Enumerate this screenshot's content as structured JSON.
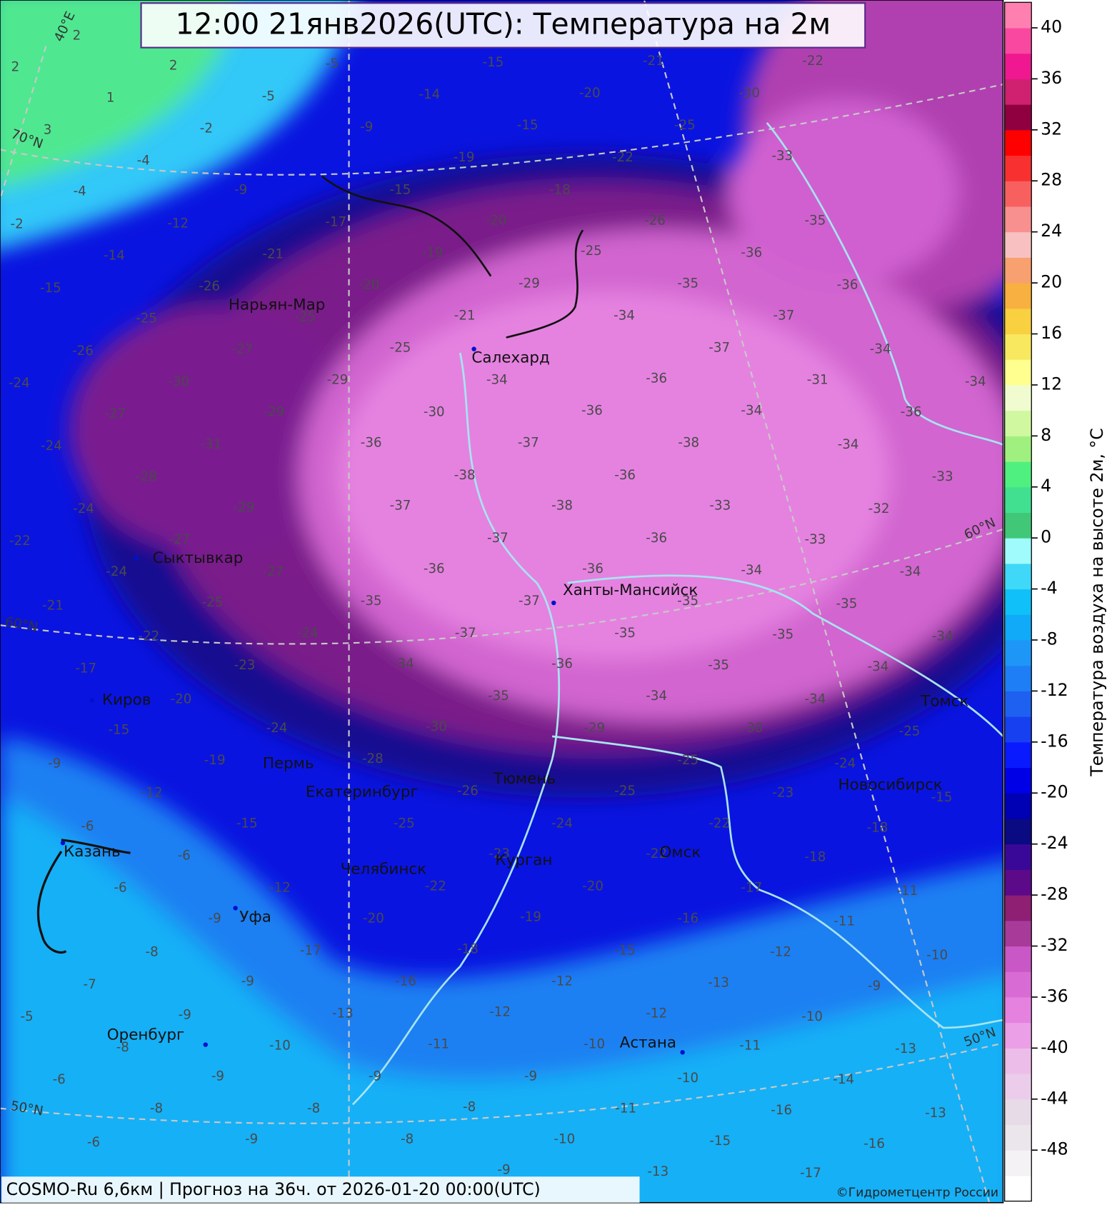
{
  "header": {
    "title": "12:00 21янв2026(UTC): Температура на 2м"
  },
  "map": {
    "cities": [
      "Нарьян-Мар",
      "Салехард",
      "Сыктывкар",
      "Ханты-Мансийск",
      "Киров",
      "Пермь",
      "Екатеринбург",
      "Тюмень",
      "Новосибирск",
      "Томск",
      "Казань",
      "Челябинск",
      "Курган",
      "Омск",
      "Уфа",
      "Оренбург",
      "Астана"
    ],
    "graticule_labels": [
      "70°N",
      "60°N",
      "60°N",
      "50°N",
      "50°N",
      "40°E"
    ],
    "temperature_labels": [
      2,
      2,
      2,
      1,
      3,
      -2,
      -4,
      -4,
      -2,
      -5,
      -5,
      -15,
      -14,
      -9,
      -9,
      -12,
      -14,
      -15,
      -15,
      -17,
      -21,
      -26,
      -25,
      -26,
      -24,
      -15,
      -19,
      -20,
      -21,
      -18,
      -20,
      -19,
      -20,
      -25,
      -27,
      -30,
      -27,
      -24,
      -22,
      -25,
      -30,
      -22,
      -26,
      -25,
      -29,
      -21,
      -25,
      -29,
      -29,
      -31,
      -28,
      -24,
      -22,
      -33,
      -36,
      -35,
      -34,
      -34,
      -30,
      -36,
      -29,
      -27,
      -24,
      -21,
      -35,
      -37,
      -37,
      -36,
      -36,
      -37,
      -38,
      -37,
      -27,
      -25,
      -22,
      -17,
      -36,
      -34,
      -31,
      -34,
      -38,
      -36,
      -38,
      -37,
      -36,
      -35,
      -24,
      -23,
      -20,
      -15,
      -9,
      -34,
      -36,
      -34,
      -33,
      -36,
      -36,
      -37,
      -37,
      -34,
      -24,
      -19,
      -12,
      -6,
      -33,
      -32,
      -33,
      -34,
      -35,
      -35,
      -36,
      -35,
      -30,
      -28,
      -15,
      -6,
      -6,
      -34,
      -35,
      -35,
      -35,
      -34,
      -29,
      -26,
      -25,
      -12,
      -9,
      -8,
      -7,
      -5,
      -34,
      -34,
      -34,
      -30,
      -25,
      -25,
      -24,
      -23,
      -22,
      -20,
      -17,
      -9,
      -9,
      -8,
      -6,
      -25,
      -24,
      -23,
      -22,
      -22,
      -20,
      -19,
      -18,
      -16,
      -13,
      -10,
      -9,
      -8,
      -6,
      -15,
      -18,
      -18,
      -17,
      -16,
      -15,
      -12,
      -12,
      -11,
      -9,
      -8,
      -9,
      -11,
      -11,
      -12,
      -13,
      -12,
      -10,
      -9,
      -8,
      -8,
      -10,
      -9,
      -10,
      -11,
      -10,
      -11,
      -10,
      -13,
      -14,
      -16,
      -15,
      -13,
      -16,
      -17,
      -13,
      -9
    ]
  },
  "colorbar": {
    "label": "Температура воздуха на высоте 2м, °C",
    "ylim": [
      -52,
      42
    ],
    "yticks": [
      40,
      36,
      32,
      28,
      24,
      20,
      16,
      12,
      8,
      4,
      0,
      -4,
      -8,
      -12,
      -16,
      -20,
      -24,
      -28,
      -32,
      -36,
      -40,
      -44,
      -48
    ],
    "colors": [
      "#ffffff",
      "#f4f2f4",
      "#ebe6eb",
      "#e8dbe8",
      "#ebcdeb",
      "#ecbde9",
      "#eb9fe6",
      "#e582e0",
      "#d86cd4",
      "#c957c5",
      "#a83a9a",
      "#8e1f73",
      "#5c0a8a",
      "#3a0898",
      "#0a0a82",
      "#0000b4",
      "#0000e6",
      "#0a1aff",
      "#1640f0",
      "#1e60f0",
      "#1e7ef5",
      "#1e96f8",
      "#10aaf8",
      "#10c0f8",
      "#40d8f8",
      "#a0fcfc",
      "#40c878",
      "#40e090",
      "#50f080",
      "#a0f080",
      "#d0f8a0",
      "#f0fcd0",
      "#ffff90",
      "#f8e860",
      "#f8d040",
      "#f8b040",
      "#f8a070",
      "#f8c0c0",
      "#f89090",
      "#f86060",
      "#f83030",
      "#ff0000",
      "#900040",
      "#d02070",
      "#f01890",
      "#f848a0",
      "#ff80b0"
    ]
  },
  "footer": {
    "model_info": "COSMO-Ru 6,6км | Прогноз на  36ч. от 2026-01-20 00:00(UTC)",
    "copyright": "©Гидрометцентр России"
  }
}
